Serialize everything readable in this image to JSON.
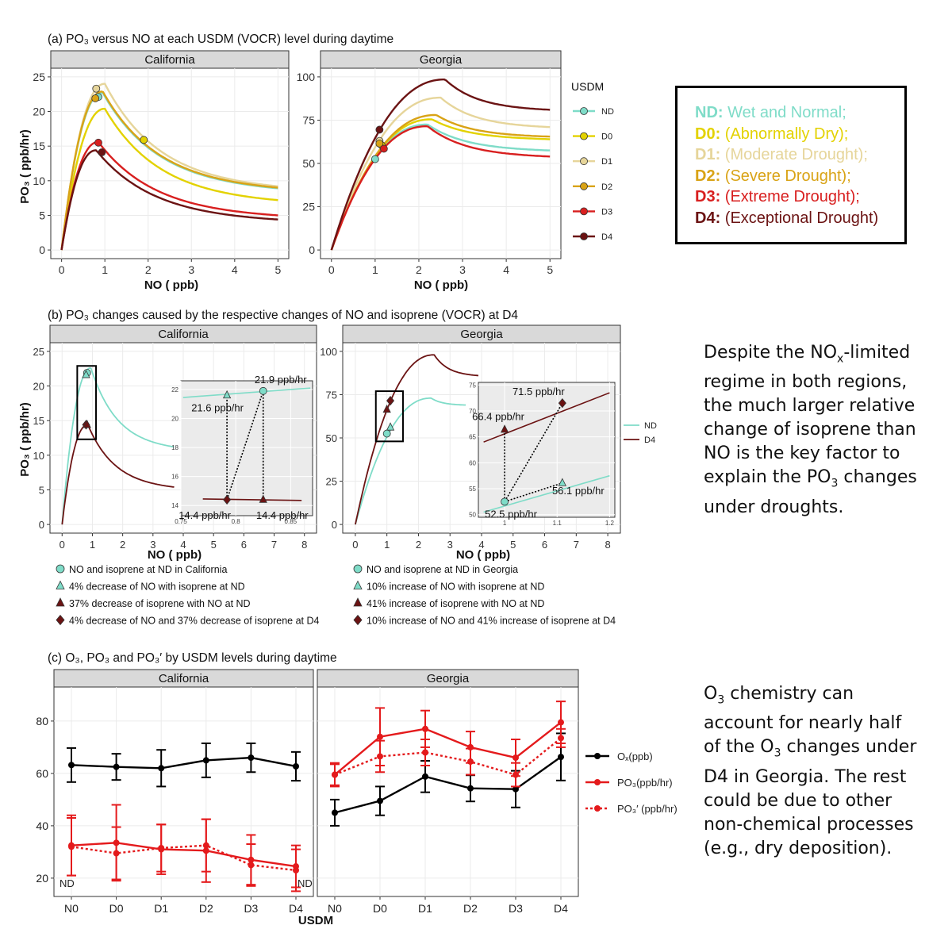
{
  "panel_a": {
    "title": "(a)  PO₃ versus NO at each USDM (VOCR) level during daytime",
    "facets": [
      "California",
      "Georgia"
    ],
    "ylabel": "PO₃ ( ppb/hr)",
    "xlabel": "NO ( ppb)",
    "legend_title": "USDM",
    "legend_items": [
      "ND",
      "D0",
      "D1",
      "D2",
      "D3",
      "D4"
    ]
  },
  "panel_b": {
    "title": "(b)  PO₃ changes caused by the respective changes of NO and isoprene (VOCR) at D4",
    "facets": [
      "California",
      "Georgia"
    ],
    "ylabel": "PO₃ ( ppb/hr)",
    "xlabel": "NO ( ppb)",
    "legend_items": [
      "ND",
      "D4"
    ],
    "california_inset_labels": [
      "21.9 ppb/hr",
      "21.6 ppb/hr",
      "14.4 ppb/hr",
      "14.4 ppb/hr"
    ],
    "georgia_inset_labels": [
      "71.5 ppb/hr",
      "66.4 ppb/hr",
      "56.1 ppb/hr",
      "52.5 ppb/hr"
    ],
    "california_notes": [
      "NO and isoprene at ND in California",
      "4% decrease of NO with isoprene at ND",
      "37% decrease of isoprene with NO at ND",
      "4% decrease of NO and 37% decrease of isoprene at D4"
    ],
    "georgia_notes": [
      "NO and isoprene at ND in Georgia",
      "10% increase of NO with isoprene at ND",
      "41% increase of isoprene with NO at ND",
      "10% increase of NO and 41% increase of isoprene at D4"
    ]
  },
  "panel_c": {
    "title": "(c) O₃, PO₃ and PO₃′ by USDM levels during daytime",
    "facets": [
      "California",
      "Georgia"
    ],
    "xlabel": "USDM",
    "legend_items": [
      "Oₓ(ppb)",
      "PO₃(ppb/hr)",
      "PO₃′ (ppb/hr)"
    ],
    "nd_labels": [
      "ND",
      "ND"
    ]
  },
  "usdm_legend": [
    {
      "code": "ND:",
      "desc": "Wet and Normal;",
      "color": "#7fdcc8"
    },
    {
      "code": "D0:",
      "desc": "(Abnormally Dry);",
      "color": "#e3d200"
    },
    {
      "code": "D1:",
      "desc": "(Moderate Drought);",
      "color": "#e6d59a"
    },
    {
      "code": "D2:",
      "desc": "(Severe Drought);",
      "color": "#d9a316"
    },
    {
      "code": "D3:",
      "desc": "(Extreme Drought);",
      "color": "#d81f1f"
    },
    {
      "code": "D4:",
      "desc": "(Exceptional Drought)",
      "color": "#6b1313"
    }
  ],
  "side_text": {
    "text_b": "Despite the NOₓ-limited regime in both regions, the much larger relative change of isoprene than NO is the key factor to explain the PO₃ changes under droughts.",
    "text_c": "O₃ chemistry can account for nearly half of the O₃ changes under D4 in Georgia. The rest could be due to other non-chemical processes (e.g., dry deposition)."
  },
  "colors": {
    "ND": "#7fdcc8",
    "D0": "#e3d200",
    "D1": "#e6d59a",
    "D2": "#d9a316",
    "D3": "#d81f1f",
    "D4": "#6b1313",
    "ox": "#000000",
    "po3": "#e41a1c"
  },
  "chart_data": [
    {
      "id": "a_california",
      "type": "line",
      "facet": "California",
      "xlim": [
        0,
        5
      ],
      "ylim": [
        0,
        25
      ],
      "xticks": [
        0,
        1,
        2,
        3,
        4,
        5
      ],
      "yticks": [
        0,
        5,
        10,
        15,
        20,
        25
      ],
      "series": [
        {
          "name": "ND",
          "peak_x": 0.95,
          "peak_y": 22.7,
          "end_y": 8.9,
          "marker": [
            0.85,
            22.1
          ]
        },
        {
          "name": "D0",
          "peak_x": 1.0,
          "peak_y": 20.4,
          "end_y": 7.2,
          "marker": [
            1.9,
            15.9
          ]
        },
        {
          "name": "D1",
          "peak_x": 1.0,
          "peak_y": 24.0,
          "end_y": 9.2,
          "marker": [
            0.8,
            23.3
          ]
        },
        {
          "name": "D2",
          "peak_x": 0.95,
          "peak_y": 22.9,
          "end_y": 9.0,
          "marker": [
            0.78,
            21.9
          ]
        },
        {
          "name": "D3",
          "peak_x": 0.85,
          "peak_y": 15.6,
          "end_y": 5.0,
          "marker": [
            0.85,
            15.5
          ]
        },
        {
          "name": "D4",
          "peak_x": 0.8,
          "peak_y": 14.4,
          "end_y": 4.4,
          "marker": [
            0.93,
            14.1
          ]
        }
      ]
    },
    {
      "id": "a_georgia",
      "type": "line",
      "facet": "Georgia",
      "xlim": [
        0,
        5
      ],
      "ylim": [
        0,
        100
      ],
      "xticks": [
        0,
        1,
        2,
        3,
        4,
        5
      ],
      "yticks": [
        0,
        25,
        50,
        75,
        100
      ],
      "series": [
        {
          "name": "ND",
          "peak_x": 2.2,
          "peak_y": 72.5,
          "end_y": 57.5,
          "marker": [
            1.0,
            52.5
          ]
        },
        {
          "name": "D0",
          "peak_x": 2.3,
          "peak_y": 75.5,
          "end_y": 64.0,
          "marker": [
            1.15,
            60.5
          ]
        },
        {
          "name": "D1",
          "peak_x": 2.5,
          "peak_y": 88.0,
          "end_y": 71.0,
          "marker": [
            1.1,
            63.0
          ]
        },
        {
          "name": "D2",
          "peak_x": 2.4,
          "peak_y": 78.0,
          "end_y": 65.5,
          "marker": [
            1.1,
            61.5
          ]
        },
        {
          "name": "D3",
          "peak_x": 2.2,
          "peak_y": 71.5,
          "end_y": 54.0,
          "marker": [
            1.2,
            58.5
          ]
        },
        {
          "name": "D4",
          "peak_x": 2.6,
          "peak_y": 98.5,
          "end_y": 81.0,
          "marker": [
            1.1,
            69.5
          ]
        }
      ]
    },
    {
      "id": "b_california",
      "type": "line",
      "facet": "California",
      "xlim": [
        0,
        8
      ],
      "ylim": [
        0,
        25
      ],
      "xticks": [
        0,
        1,
        2,
        3,
        4,
        5,
        6,
        7,
        8
      ],
      "yticks": [
        0,
        5,
        10,
        15,
        20,
        25
      ],
      "series": [
        {
          "name": "ND",
          "peak_x": 0.95,
          "peak_y": 22.6,
          "end_x": 3.7,
          "end_y": 11.2
        },
        {
          "name": "D4",
          "peak_x": 0.85,
          "peak_y": 14.4,
          "end_x": 3.7,
          "end_y": 5.4
        }
      ],
      "inset": {
        "xlim": [
          0.75,
          0.87
        ],
        "ylim": [
          13.3,
          22.6
        ],
        "xticks": [
          0.75,
          0.8,
          0.85
        ],
        "yticks": [
          14,
          16,
          18,
          20,
          22
        ],
        "points": [
          {
            "label": "21.9 ppb/hr",
            "x": 0.825,
            "y": 21.9,
            "shape": "circle",
            "color": "ND"
          },
          {
            "label": "21.6 ppb/hr",
            "x": 0.792,
            "y": 21.6,
            "shape": "triangle",
            "color": "ND"
          },
          {
            "label": "14.4 ppb/hr",
            "x": 0.792,
            "y": 14.4,
            "shape": "diamond",
            "color": "D4"
          },
          {
            "label": "14.4 ppb/hr",
            "x": 0.825,
            "y": 14.4,
            "shape": "triangle",
            "color": "D4"
          }
        ]
      }
    },
    {
      "id": "b_georgia",
      "type": "line",
      "facet": "Georgia",
      "xlim": [
        0,
        8
      ],
      "ylim": [
        0,
        100
      ],
      "xticks": [
        0,
        1,
        2,
        3,
        4,
        5,
        6,
        7,
        8
      ],
      "yticks": [
        0,
        25,
        50,
        75,
        100
      ],
      "series": [
        {
          "name": "ND",
          "peak_x": 2.4,
          "peak_y": 73.0,
          "end_x": 3.5,
          "end_y": 69.0
        },
        {
          "name": "D4",
          "peak_x": 2.5,
          "peak_y": 98.0,
          "end_x": 3.9,
          "end_y": 86.0
        }
      ],
      "inset": {
        "xlim": [
          0.95,
          1.21
        ],
        "ylim": [
          49.5,
          75.5
        ],
        "xticks": [
          1,
          1.1,
          1.2
        ],
        "yticks": [
          50,
          55,
          60,
          65,
          70,
          75
        ],
        "points": [
          {
            "label": "71.5 ppb/hr",
            "x": 1.11,
            "y": 71.5,
            "shape": "diamond",
            "color": "D4"
          },
          {
            "label": "66.4 ppb/hr",
            "x": 1.0,
            "y": 66.4,
            "shape": "triangle",
            "color": "D4"
          },
          {
            "label": "56.1 ppb/hr",
            "x": 1.11,
            "y": 56.1,
            "shape": "triangle",
            "color": "ND"
          },
          {
            "label": "52.5 ppb/hr",
            "x": 1.0,
            "y": 52.5,
            "shape": "circle",
            "color": "ND"
          }
        ]
      }
    },
    {
      "id": "c_california",
      "type": "line",
      "facet": "California",
      "categories": [
        "N0",
        "D0",
        "D1",
        "D2",
        "D3",
        "D4"
      ],
      "ylim": [
        13,
        93
      ],
      "yticks": [
        20,
        40,
        60,
        80
      ],
      "series": [
        {
          "name": "Oₓ(ppb)",
          "values": [
            63.2,
            62.5,
            62.0,
            65.0,
            66.0,
            62.7
          ],
          "err": [
            6.5,
            5.0,
            7.0,
            6.5,
            5.5,
            5.5
          ]
        },
        {
          "name": "PO₃(ppb/hr)",
          "values": [
            32.5,
            33.5,
            31.0,
            30.5,
            27.0,
            24.5
          ],
          "err": [
            11.5,
            14.5,
            9.5,
            12.0,
            9.5,
            8.0
          ]
        },
        {
          "name": "PO₃′ (ppb/hr)",
          "values": [
            32.0,
            29.5,
            31.5,
            32.5,
            25.0,
            23.0
          ],
          "err": [
            11.0,
            10.0,
            9.0,
            10.0,
            8.0,
            8.0
          ]
        }
      ]
    },
    {
      "id": "c_georgia",
      "type": "line",
      "facet": "Georgia",
      "categories": [
        "N0",
        "D0",
        "D1",
        "D2",
        "D3",
        "D4"
      ],
      "ylim": [
        13,
        93
      ],
      "yticks": [
        20,
        40,
        60,
        80
      ],
      "series": [
        {
          "name": "Oₓ(ppb)",
          "values": [
            45.0,
            49.5,
            58.8,
            54.3,
            54.0,
            66.3
          ],
          "err": [
            5.0,
            5.5,
            6.0,
            5.0,
            7.0,
            9.0
          ]
        },
        {
          "name": "PO₃(ppb/hr)",
          "values": [
            59.5,
            74.0,
            77.0,
            70.0,
            66.0,
            79.5
          ],
          "err": [
            4.5,
            11.0,
            7.0,
            6.0,
            7.0,
            8.0
          ]
        },
        {
          "name": "PO₃′ (ppb/hr)",
          "values": [
            59.5,
            66.5,
            68.0,
            64.5,
            59.5,
            73.5
          ],
          "err": [
            4.0,
            6.0,
            5.0,
            5.0,
            4.5,
            3.5
          ]
        }
      ]
    }
  ]
}
